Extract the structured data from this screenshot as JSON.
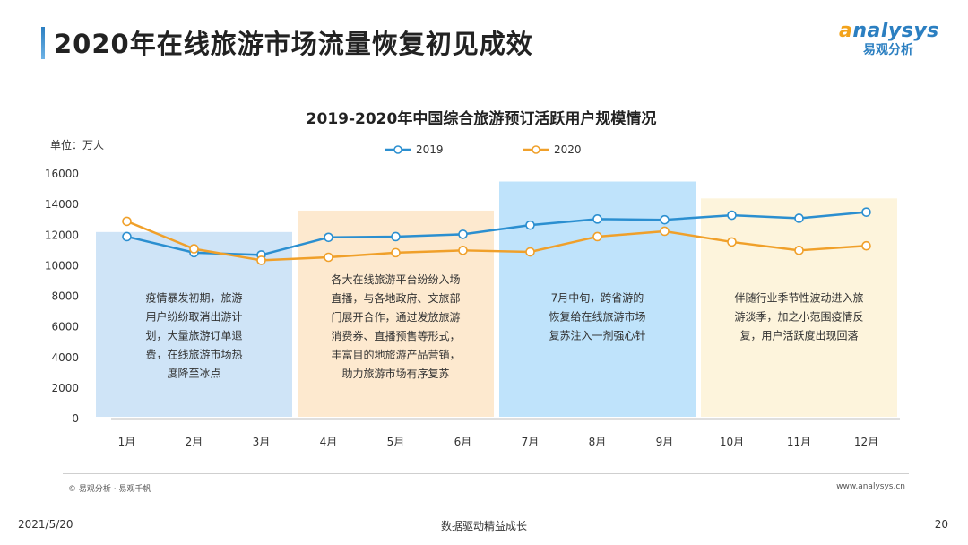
{
  "header": {
    "title": "2020年在线旅游市场流量恢复初见成效",
    "logo_a": "a",
    "logo_rest": "nalysys",
    "logo_cn": "易观分析"
  },
  "colors": {
    "series_2019": "#2b8fd0",
    "series_2020": "#f0a02a",
    "band_blue": "#cfe4f7",
    "band_orange": "#fde9cf",
    "band_cyan": "#bfe3fb",
    "band_yellow": "#fdf4dc"
  },
  "chart_data": {
    "type": "line",
    "title": "2019-2020年中国综合旅游预订活跃用户规模情况",
    "unit_label": "单位：万人",
    "categories": [
      "1月",
      "2月",
      "3月",
      "4月",
      "5月",
      "6月",
      "7月",
      "8月",
      "9月",
      "10月",
      "11月",
      "12月"
    ],
    "ylim": [
      0,
      16000
    ],
    "yticks": [
      0,
      2000,
      4000,
      6000,
      8000,
      10000,
      12000,
      14000,
      16000
    ],
    "series": [
      {
        "name": "2019",
        "values": [
          11900,
          10850,
          10700,
          11850,
          11900,
          12050,
          12650,
          13050,
          13000,
          13300,
          13100,
          13500
        ]
      },
      {
        "name": "2020",
        "values": [
          12900,
          11100,
          10350,
          10550,
          10850,
          11000,
          10900,
          11900,
          12250,
          11550,
          11000,
          11300
        ]
      }
    ],
    "legend_position": "top",
    "grid": false,
    "annotations": [
      {
        "text_lines": [
          "疫情暴发初期，旅游",
          "用户纷纷取消出游计",
          "划，大量旅游订单退",
          "费，在线旅游市场热",
          "度降至冰点"
        ],
        "start": 0,
        "end": 2,
        "band_top": 12200
      },
      {
        "text_lines": [
          "各大在线旅游平台纷纷入场",
          "直播，与各地政府、文旅部",
          "门展开合作，通过发放旅游",
          "消费券、直播预售等形式，",
          "丰富目的地旅游产品营销，",
          "助力旅游市场有序复苏"
        ],
        "start": 3,
        "end": 5,
        "band_top": 13600
      },
      {
        "text_lines": [
          "7月中旬，跨省游的",
          "恢复给在线旅游市场",
          "复苏注入一剂强心针"
        ],
        "start": 6,
        "end": 8,
        "band_top": 15500
      },
      {
        "text_lines": [
          "伴随行业季节性波动进入旅",
          "游淡季，加之小范围疫情反",
          "复，用户活跃度出现回落"
        ],
        "start": 9,
        "end": 11,
        "band_top": 14400
      }
    ]
  },
  "footer": {
    "source": "© 易观分析 · 易观千帆",
    "site": "www.analysys.cn",
    "date": "2021/5/20",
    "slogan": "数据驱动精益成长",
    "page": "20"
  }
}
